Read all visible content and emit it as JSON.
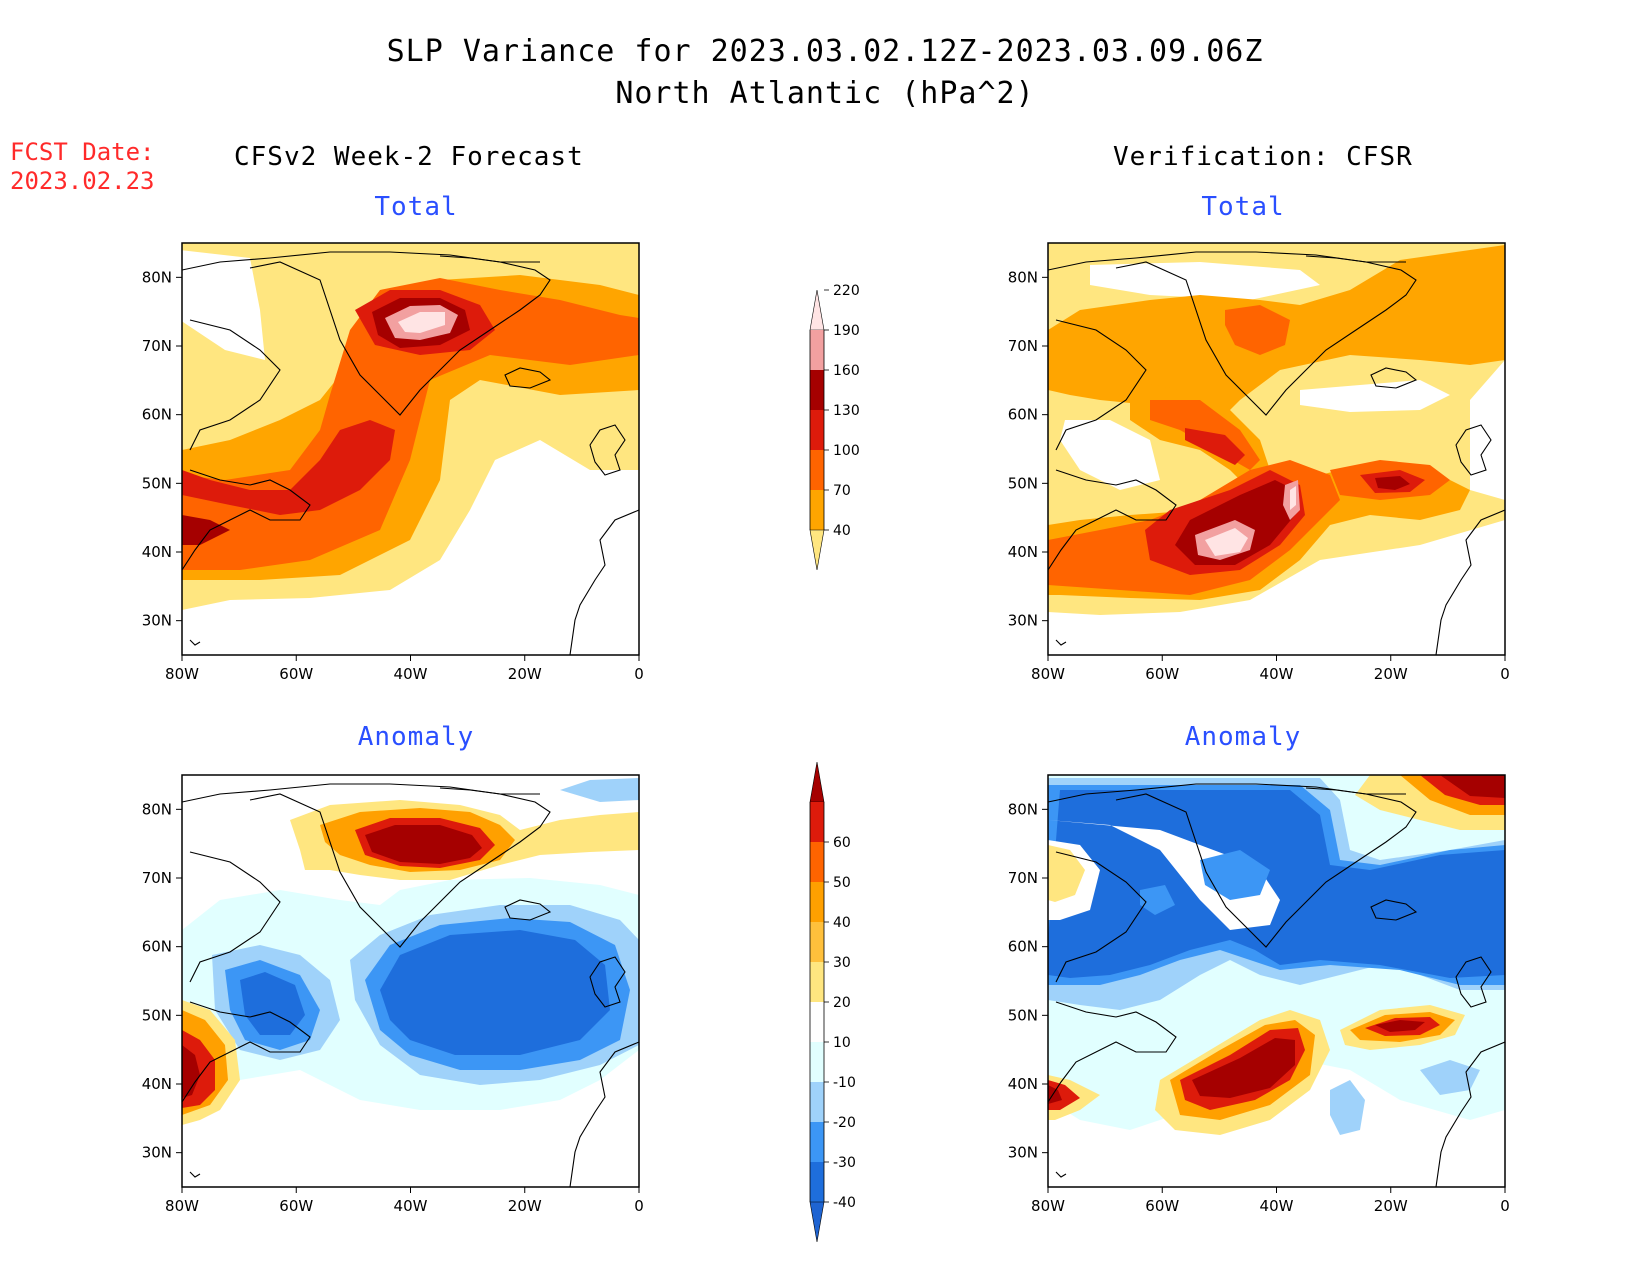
{
  "title": {
    "line1": "SLP Variance for 2023.03.02.12Z-2023.03.09.06Z",
    "line2": "North Atlantic (hPa^2)"
  },
  "forecast_date": {
    "label": "FCST Date:",
    "value": "2023.02.23"
  },
  "columns": {
    "left": "CFSv2 Week-2 Forecast",
    "right": "Verification: CFSR"
  },
  "panels": {
    "top_left": "Total",
    "top_right": "Total",
    "bottom_left": "Anomaly",
    "bottom_right": "Anomaly"
  },
  "axes": {
    "lat_labels": [
      "80N",
      "70N",
      "60N",
      "50N",
      "40N",
      "30N"
    ],
    "lon_labels": [
      "80W",
      "60W",
      "40W",
      "20W",
      "0"
    ],
    "lat_range": [
      25,
      85
    ],
    "lon_range": [
      -80,
      0
    ]
  },
  "colorbars": {
    "total": {
      "levels": [
        "40",
        "70",
        "100",
        "130",
        "160",
        "190",
        "220"
      ],
      "colors": [
        "#ffe680",
        "#ffa500",
        "#ff6400",
        "#dd1b0b",
        "#a50000",
        "#f2a0a0",
        "#ffe4e4"
      ]
    },
    "anomaly": {
      "levels": [
        "-40",
        "-30",
        "-20",
        "-10",
        "10",
        "20",
        "30",
        "40",
        "50",
        "60"
      ],
      "colors": [
        "#1e64d2",
        "#1e6edc",
        "#3c96f5",
        "#9fd2fa",
        "#e1ffff",
        "#ffffff",
        "#ffe680",
        "#ffc03c",
        "#ffa000",
        "#ff6400",
        "#dd1b0b",
        "#a50000"
      ]
    }
  },
  "colors": {
    "forecast_date_text": "#ff2a2a",
    "panel_subtitle": "#2a4fff",
    "land_outline": "#000000"
  }
}
